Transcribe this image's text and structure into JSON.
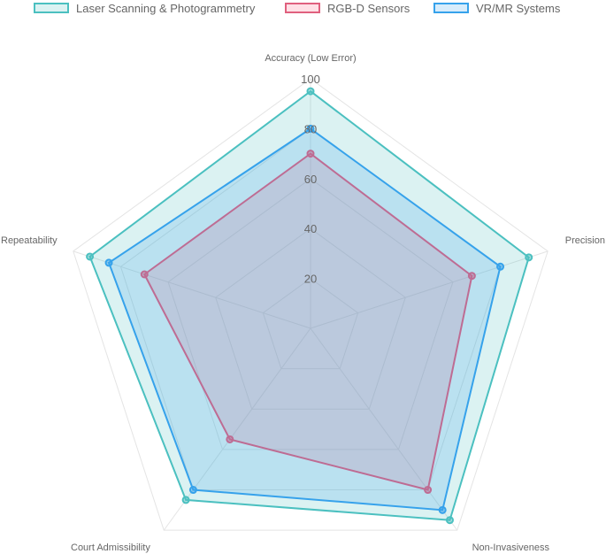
{
  "chart_data": {
    "type": "radar",
    "title": "",
    "axes": [
      "Accuracy (Low Error)",
      "Precision",
      "Non-Invasiveness",
      "Court Admissibility",
      "Repeatability"
    ],
    "rlim": [
      0,
      100
    ],
    "ticks": [
      "20",
      "40",
      "60",
      "80",
      "100"
    ],
    "tick_values": [
      20,
      40,
      60,
      80,
      100
    ],
    "grid": true,
    "legend_position": "top",
    "series": [
      {
        "name": "Laser Scanning & Photogrammetry",
        "values": [
          95,
          92,
          95,
          85,
          93
        ],
        "color": "#4bc0c0"
      },
      {
        "name": "RGB-D Sensors",
        "values": [
          70,
          68,
          80,
          55,
          70
        ],
        "color": "#e0607e"
      },
      {
        "name": "VR/MR Systems",
        "values": [
          80,
          80,
          90,
          80,
          85
        ],
        "color": "#36a2eb"
      }
    ]
  }
}
